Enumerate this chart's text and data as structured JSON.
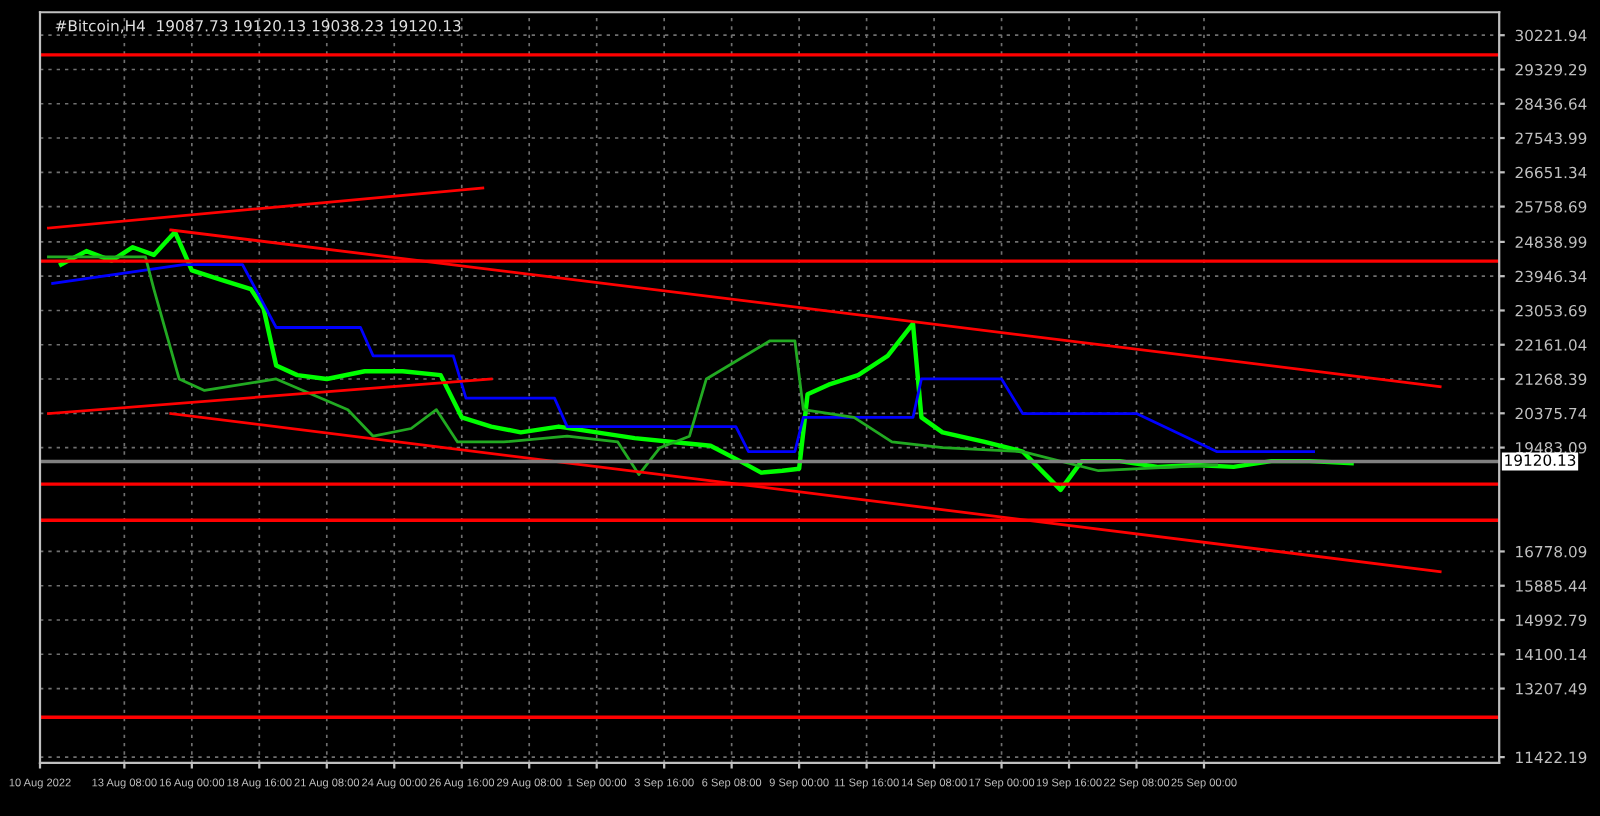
{
  "chart_data": {
    "type": "line",
    "title": "#Bitcoin,H4  19087.73 19120.13 19038.23 19120.13",
    "grid": true,
    "legend": false,
    "xlim": [
      "2022-08-10T00:00",
      "2022-10-06T16:00"
    ],
    "xticks": [
      {
        "value": "2022-08-10T00:00",
        "label": "10 Aug 2022"
      },
      {
        "value": "2022-08-13T08:00",
        "label": "13 Aug 08:00"
      },
      {
        "value": "2022-08-16T00:00",
        "label": "16 Aug 00:00"
      },
      {
        "value": "2022-08-18T16:00",
        "label": "18 Aug 16:00"
      },
      {
        "value": "2022-08-21T08:00",
        "label": "21 Aug 08:00"
      },
      {
        "value": "2022-08-24T00:00",
        "label": "24 Aug 00:00"
      },
      {
        "value": "2022-08-26T16:00",
        "label": "26 Aug 16:00"
      },
      {
        "value": "2022-08-29T08:00",
        "label": "29 Aug 08:00"
      },
      {
        "value": "2022-09-01T00:00",
        "label": "1 Sep 00:00"
      },
      {
        "value": "2022-09-03T16:00",
        "label": "3 Sep 16:00"
      },
      {
        "value": "2022-09-06T08:00",
        "label": "6 Sep 08:00"
      },
      {
        "value": "2022-09-09T00:00",
        "label": "9 Sep 00:00"
      },
      {
        "value": "2022-09-11T16:00",
        "label": "11 Sep 16:00"
      },
      {
        "value": "2022-09-14T08:00",
        "label": "14 Sep 08:00"
      },
      {
        "value": "2022-09-17T00:00",
        "label": "17 Sep 00:00"
      },
      {
        "value": "2022-09-19T16:00",
        "label": "19 Sep 16:00"
      },
      {
        "value": "2022-09-22T08:00",
        "label": "22 Sep 08:00"
      },
      {
        "value": "2022-09-25T00:00",
        "label": "25 Sep 00:00"
      }
    ],
    "ylim": [
      11270,
      30820
    ],
    "yticks": [
      {
        "value": 30221.94,
        "label": "30221.94"
      },
      {
        "value": 29329.29,
        "label": "29329.29"
      },
      {
        "value": 28436.64,
        "label": "28436.64"
      },
      {
        "value": 27543.99,
        "label": "27543.99"
      },
      {
        "value": 26651.34,
        "label": "26651.34"
      },
      {
        "value": 25758.69,
        "label": "25758.69"
      },
      {
        "value": 24838.99,
        "label": "24838.99"
      },
      {
        "value": 23946.34,
        "label": "23946.34"
      },
      {
        "value": 23053.69,
        "label": "23053.69"
      },
      {
        "value": 22161.04,
        "label": "22161.04"
      },
      {
        "value": 21268.39,
        "label": "21268.39"
      },
      {
        "value": 20375.74,
        "label": "20375.74"
      },
      {
        "value": 19483.09,
        "label": "19483.09"
      },
      {
        "value": 16778.09,
        "label": "16778.09"
      },
      {
        "value": 15885.44,
        "label": "15885.44"
      },
      {
        "value": 14992.79,
        "label": "14992.79"
      },
      {
        "value": 14100.14,
        "label": "14100.14"
      },
      {
        "value": 13207.49,
        "label": "13207.49"
      },
      {
        "value": 11422.19,
        "label": "11422.19"
      }
    ],
    "ref_lines": [
      {
        "axis": "y",
        "value": 29710,
        "color": "#ff0000"
      },
      {
        "axis": "y",
        "value": 24340,
        "color": "#ff0000"
      },
      {
        "axis": "y",
        "value": 18530,
        "color": "#ff0000"
      },
      {
        "axis": "y",
        "value": 17590,
        "color": "#ff0000"
      },
      {
        "axis": "y",
        "value": 12460,
        "color": "#ff0000"
      },
      {
        "axis": "y",
        "value": 19120.13,
        "label": "19120.13",
        "color": "#808080"
      }
    ],
    "series": [
      {
        "color": "#00ff00",
        "x": [
          "2022-08-10T20:00",
          "2022-08-11T20:00",
          "2022-08-12T20:00",
          "2022-08-13T16:00",
          "2022-08-14T12:00",
          "2022-08-15T08:00",
          "2022-08-16T00:00",
          "2022-08-17T04:00",
          "2022-08-18T08:00",
          "2022-08-18T20:00",
          "2022-08-19T08:00",
          "2022-08-20T04:00",
          "2022-08-21T08:00",
          "2022-08-22T20:00",
          "2022-08-24T08:00",
          "2022-08-25T20:00",
          "2022-08-26T16:00",
          "2022-08-27T20:00",
          "2022-08-29T00:00",
          "2022-08-30T12:00",
          "2022-09-01T00:00",
          "2022-09-02T12:00",
          "2022-09-04T00:00",
          "2022-09-05T12:00",
          "2022-09-06T16:00",
          "2022-09-07T12:00",
          "2022-09-08T08:00",
          "2022-09-09T00:00",
          "2022-09-09T08:00",
          "2022-09-10T04:00",
          "2022-09-11T08:00",
          "2022-09-12T12:00",
          "2022-09-13T12:00",
          "2022-09-13T20:00",
          "2022-09-14T16:00",
          "2022-09-16T08:00",
          "2022-09-17T20:00",
          "2022-09-19T08:00",
          "2022-09-20T04:00",
          "2022-09-21T16:00",
          "2022-09-23T04:00",
          "2022-09-24T16:00",
          "2022-09-26T04:00",
          "2022-09-27T16:00",
          "2022-09-29T04:00",
          "2022-09-30T20:00"
        ],
        "values": [
          24250,
          24600,
          24350,
          24700,
          24500,
          25100,
          24100,
          23850,
          23610,
          23110,
          21620,
          21370,
          21270,
          21470,
          21470,
          21370,
          20270,
          20030,
          19880,
          20030,
          19880,
          19730,
          19630,
          19530,
          19130,
          18830,
          18880,
          18930,
          20870,
          21120,
          21370,
          21870,
          22710,
          20270,
          19880,
          19630,
          19380,
          18380,
          19130,
          19130,
          18980,
          19030,
          18980,
          19130,
          19130,
          19080
        ]
      },
      {
        "color": "#0000ff",
        "x": [
          "2022-08-10T12:00",
          "2022-08-15T16:00",
          "2022-08-18T00:00",
          "2022-08-19T08:00",
          "2022-08-22T16:00",
          "2022-08-23T04:00",
          "2022-08-26T08:00",
          "2022-08-26T20:00",
          "2022-08-30T08:00",
          "2022-08-30T20:00",
          "2022-09-06T12:00",
          "2022-09-07T00:00",
          "2022-09-08T20:00",
          "2022-09-09T04:00",
          "2022-09-13T12:00",
          "2022-09-13T20:00",
          "2022-09-17T00:00",
          "2022-09-17T20:00",
          "2022-09-22T08:00",
          "2022-09-25T12:00",
          "2022-09-29T08:00"
        ],
        "values": [
          23760,
          24250,
          24250,
          22610,
          22610,
          21870,
          21870,
          20770,
          20770,
          20030,
          20030,
          19380,
          19380,
          20270,
          20270,
          21270,
          21270,
          20370,
          20370,
          19380,
          19380
        ]
      },
      {
        "color": "#22aa22",
        "x": [
          "2022-08-10T08:00",
          "2022-08-14T04:00",
          "2022-08-14T12:00",
          "2022-08-15T12:00",
          "2022-08-16T12:00",
          "2022-08-19T08:00",
          "2022-08-22T04:00",
          "2022-08-23T04:00",
          "2022-08-24T16:00",
          "2022-08-25T16:00",
          "2022-08-26T12:00",
          "2022-08-28T08:00",
          "2022-08-30T20:00",
          "2022-09-01T20:00",
          "2022-09-02T16:00",
          "2022-09-03T12:00",
          "2022-09-04T16:00",
          "2022-09-05T08:00",
          "2022-09-07T20:00",
          "2022-09-08T20:00",
          "2022-09-09T04:00",
          "2022-09-11T04:00",
          "2022-09-12T16:00",
          "2022-09-14T16:00",
          "2022-09-17T20:00",
          "2022-09-20T20:00",
          "2022-09-25T12:00"
        ],
        "values": [
          24450,
          24450,
          23610,
          21270,
          20970,
          21270,
          20470,
          19780,
          19980,
          20470,
          19630,
          19630,
          19780,
          19630,
          18780,
          19480,
          19780,
          21270,
          22260,
          22260,
          20470,
          20270,
          19630,
          19480,
          19380,
          18880,
          19030
        ]
      },
      {
        "color": "#ff0000",
        "x": [
          "2022-08-10T08:00",
          "2022-08-27T12:00"
        ],
        "values": [
          25200,
          26240
        ]
      },
      {
        "color": "#ff0000",
        "x": [
          "2022-08-15T04:00",
          "2022-10-04T08:00"
        ],
        "values": [
          25150,
          21070
        ]
      },
      {
        "color": "#ff0000",
        "x": [
          "2022-08-10T08:00",
          "2022-08-27T20:00"
        ],
        "values": [
          20370,
          21270
        ]
      },
      {
        "color": "#ff0000",
        "x": [
          "2022-08-15T04:00",
          "2022-10-04T08:00"
        ],
        "values": [
          20370,
          16250
        ]
      }
    ]
  }
}
